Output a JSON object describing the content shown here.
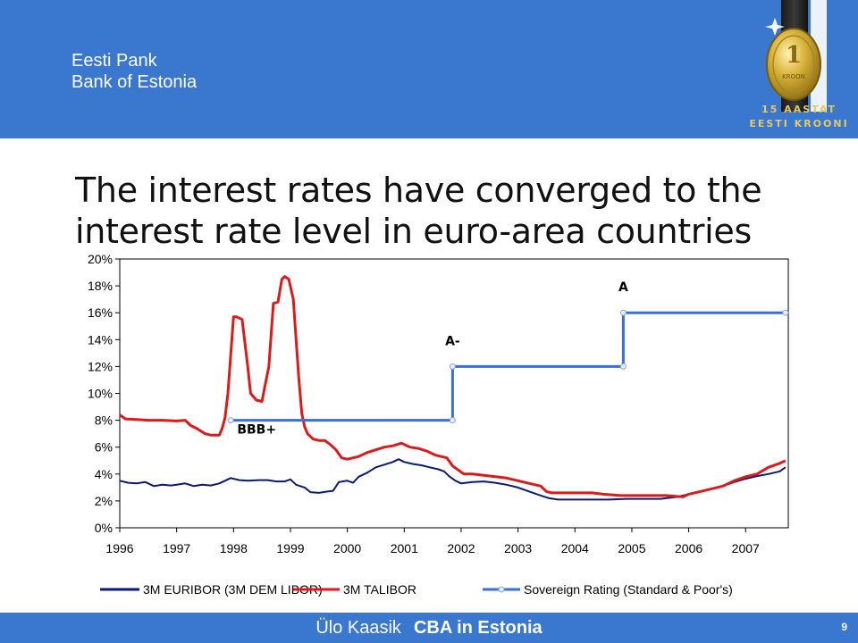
{
  "header": {
    "bank_name_et": "Eesti Pank",
    "bank_name_en": "Bank of Estonia",
    "logo": {
      "icon": "kroon-coin-icon",
      "line1": "15 AASTAT",
      "line2": "EESTI KROONI",
      "coin_text": "KROON"
    }
  },
  "slide": {
    "title": "The interest rates have converged to the interest rate level in euro-area countries"
  },
  "footer": {
    "author": "Ülo Kaasik",
    "topic": "CBA in Estonia",
    "page": "9"
  },
  "colors": {
    "header_bg": "#3a78cf",
    "euribor": "#0a1a78",
    "talibor": "#dc1a1a",
    "rating": "#3a6fd8"
  },
  "chart_data": {
    "type": "line",
    "title": "",
    "xlabel": "",
    "ylabel": "",
    "xlim": [
      1996,
      2007.75
    ],
    "ylim": [
      0,
      20
    ],
    "grid": false,
    "legend_position": "bottom",
    "x_ticks": [
      "1996",
      "1997",
      "1998",
      "1999",
      "2000",
      "2001",
      "2002",
      "2003",
      "2004",
      "2005",
      "2006",
      "2007"
    ],
    "y_ticks": [
      "0%",
      "2%",
      "4%",
      "6%",
      "8%",
      "10%",
      "12%",
      "14%",
      "16%",
      "18%",
      "20%"
    ],
    "series": [
      {
        "name": "3M EURIBOR (3M DEM LIBOR)",
        "color": "#0a1a78",
        "x": [
          1996.0,
          1996.15,
          1996.3,
          1996.45,
          1996.6,
          1996.75,
          1996.9,
          1997.0,
          1997.15,
          1997.3,
          1997.45,
          1997.6,
          1997.75,
          1997.85,
          1997.95,
          1998.1,
          1998.25,
          1998.45,
          1998.6,
          1998.75,
          1998.9,
          1999.0,
          1999.1,
          1999.25,
          1999.35,
          1999.5,
          1999.65,
          1999.75,
          1999.85,
          2000.0,
          2000.1,
          2000.2,
          2000.35,
          2000.5,
          2000.65,
          2000.8,
          2000.9,
          2001.0,
          2001.15,
          2001.3,
          2001.45,
          2001.6,
          2001.7,
          2001.8,
          2001.9,
          2002.0,
          2002.2,
          2002.4,
          2002.6,
          2002.8,
          2003.0,
          2003.2,
          2003.4,
          2003.55,
          2003.7,
          2004.0,
          2004.3,
          2004.6,
          2004.9,
          2005.2,
          2005.5,
          2005.8,
          2006.0,
          2006.2,
          2006.4,
          2006.6,
          2006.8,
          2007.0,
          2007.2,
          2007.4,
          2007.6,
          2007.7
        ],
        "values": [
          3.5,
          3.35,
          3.3,
          3.4,
          3.1,
          3.2,
          3.15,
          3.2,
          3.3,
          3.1,
          3.2,
          3.15,
          3.3,
          3.5,
          3.7,
          3.55,
          3.5,
          3.55,
          3.55,
          3.45,
          3.45,
          3.6,
          3.2,
          3.0,
          2.65,
          2.6,
          2.7,
          2.75,
          3.4,
          3.5,
          3.35,
          3.8,
          4.1,
          4.5,
          4.7,
          4.9,
          5.1,
          4.9,
          4.75,
          4.65,
          4.5,
          4.35,
          4.2,
          3.8,
          3.5,
          3.3,
          3.4,
          3.45,
          3.35,
          3.2,
          3.0,
          2.7,
          2.4,
          2.2,
          2.1,
          2.1,
          2.1,
          2.1,
          2.15,
          2.15,
          2.15,
          2.3,
          2.5,
          2.7,
          2.9,
          3.1,
          3.4,
          3.65,
          3.85,
          4.0,
          4.2,
          4.5
        ]
      },
      {
        "name": "3M TALIBOR",
        "color": "#dc1a1a",
        "x": [
          1996.0,
          1996.1,
          1996.3,
          1996.5,
          1996.75,
          1997.0,
          1997.15,
          1997.25,
          1997.35,
          1997.5,
          1997.6,
          1997.75,
          1997.8,
          1997.85,
          1997.9,
          1998.0,
          1998.05,
          1998.15,
          1998.25,
          1998.3,
          1998.4,
          1998.5,
          1998.55,
          1998.62,
          1998.7,
          1998.78,
          1998.85,
          1998.9,
          1998.97,
          1999.05,
          1999.1,
          1999.15,
          1999.2,
          1999.25,
          1999.3,
          1999.4,
          1999.5,
          1999.6,
          1999.7,
          1999.8,
          1999.9,
          2000.0,
          2000.1,
          2000.2,
          2000.35,
          2000.5,
          2000.65,
          2000.8,
          2000.95,
          2001.1,
          2001.25,
          2001.4,
          2001.55,
          2001.65,
          2001.75,
          2001.85,
          2001.95,
          2002.05,
          2002.2,
          2002.4,
          2002.6,
          2002.8,
          2003.0,
          2003.2,
          2003.4,
          2003.5,
          2003.6,
          2003.8,
          2004.0,
          2004.3,
          2004.5,
          2004.8,
          2005.0,
          2005.3,
          2005.6,
          2005.9,
          2006.0,
          2006.2,
          2006.4,
          2006.6,
          2006.8,
          2007.0,
          2007.2,
          2007.4,
          2007.6,
          2007.7
        ],
        "values": [
          8.4,
          8.1,
          8.05,
          8.0,
          8.0,
          7.95,
          8.0,
          7.6,
          7.4,
          7.0,
          6.9,
          6.9,
          7.4,
          8.2,
          10.0,
          15.7,
          15.7,
          15.5,
          12.0,
          10.0,
          9.5,
          9.4,
          10.5,
          12.0,
          16.7,
          16.8,
          18.5,
          18.7,
          18.5,
          17.0,
          14.0,
          11.0,
          8.5,
          7.5,
          7.0,
          6.6,
          6.5,
          6.5,
          6.2,
          5.8,
          5.2,
          5.1,
          5.2,
          5.3,
          5.6,
          5.8,
          6.0,
          6.1,
          6.3,
          6.0,
          5.9,
          5.7,
          5.4,
          5.3,
          5.2,
          4.6,
          4.3,
          4.0,
          4.0,
          3.9,
          3.8,
          3.7,
          3.5,
          3.3,
          3.1,
          2.7,
          2.6,
          2.6,
          2.6,
          2.6,
          2.5,
          2.4,
          2.4,
          2.4,
          2.4,
          2.3,
          2.5,
          2.7,
          2.9,
          3.1,
          3.5,
          3.8,
          4.0,
          4.5,
          4.8,
          5.0
        ]
      },
      {
        "name": "Sovereign Rating (Standard & Poor's)",
        "color": "#3a6fd8",
        "x": [
          1997.95,
          2001.85,
          2001.85,
          2004.85,
          2004.85,
          2007.7
        ],
        "values": [
          8,
          8,
          12,
          12,
          16,
          16
        ]
      }
    ],
    "annotations": [
      {
        "text": "BBB+",
        "x": 1998.0,
        "y": 7.0
      },
      {
        "text": "A-",
        "x": 2001.85,
        "y": 13.6
      },
      {
        "text": "A",
        "x": 2004.85,
        "y": 17.6
      }
    ]
  }
}
